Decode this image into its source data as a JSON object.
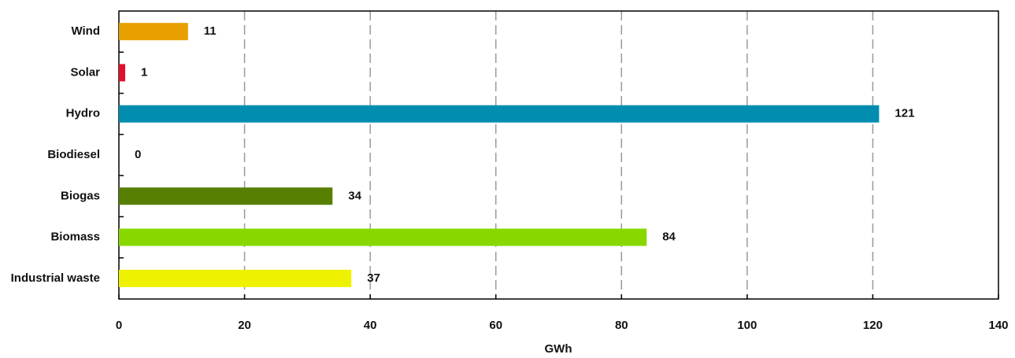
{
  "chart_data": {
    "type": "barh",
    "categories": [
      "Wind",
      "Solar",
      "Hydro",
      "Biodiesel",
      "Biogas",
      "Biomass",
      "Industrial waste"
    ],
    "values": [
      11,
      1,
      121,
      0,
      34,
      84,
      37
    ],
    "colors": [
      "#e89f00",
      "#e0102c",
      "#008db0",
      "#7a7a7a",
      "#567f00",
      "#88d800",
      "#eef200"
    ],
    "xlabel": "GWh",
    "xlim": [
      0,
      140
    ],
    "xticks": [
      0,
      20,
      40,
      60,
      80,
      100,
      120,
      140
    ],
    "grid": true
  }
}
